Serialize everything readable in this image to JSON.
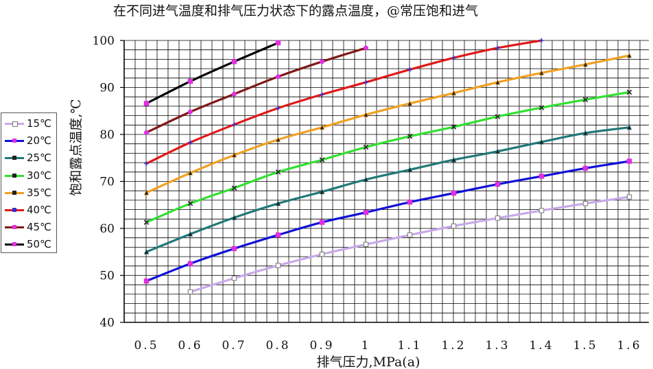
{
  "chart_data": {
    "type": "line",
    "title": "在不同进气温度和排气压力状态下的露点温度，@常压饱和进气",
    "xlabel": "排气压力,MPa(a)",
    "ylabel": "饱和露点温度,℃",
    "x": [
      0.5,
      0.6,
      0.7,
      0.8,
      0.9,
      1.0,
      1.1,
      1.2,
      1.3,
      1.4,
      1.5,
      1.6
    ],
    "x_tick_labels": [
      "0.5",
      "0.6",
      "0.7",
      "0.8",
      "0.9",
      "1",
      "1.1",
      "1.2",
      "1.3",
      "1.4",
      "1.5",
      "1.6"
    ],
    "ylim": [
      40,
      100
    ],
    "y_ticks": [
      40,
      50,
      60,
      70,
      80,
      90,
      100
    ],
    "grid": true,
    "legend_position": "left",
    "series": [
      {
        "name": "15℃",
        "color": "#c8a8e8",
        "marker": "square-open",
        "points": [
          [
            0.6,
            46.5
          ],
          [
            0.7,
            49.4
          ],
          [
            0.8,
            52.1
          ],
          [
            0.9,
            54.5
          ],
          [
            1.0,
            56.6
          ],
          [
            1.1,
            58.6
          ],
          [
            1.2,
            60.5
          ],
          [
            1.3,
            62.2
          ],
          [
            1.4,
            63.8
          ],
          [
            1.5,
            65.3
          ],
          [
            1.6,
            66.7
          ]
        ]
      },
      {
        "name": "20℃",
        "color": "#1010d8",
        "marker": "square",
        "points": [
          [
            0.5,
            48.8
          ],
          [
            0.6,
            52.5
          ],
          [
            0.7,
            55.7
          ],
          [
            0.8,
            58.6
          ],
          [
            0.9,
            61.3
          ],
          [
            1.0,
            63.4
          ],
          [
            1.1,
            65.6
          ],
          [
            1.2,
            67.5
          ],
          [
            1.3,
            69.4
          ],
          [
            1.4,
            71.1
          ],
          [
            1.5,
            72.8
          ],
          [
            1.6,
            74.3
          ]
        ]
      },
      {
        "name": "25℃",
        "color": "#207878",
        "marker": "triangle",
        "points": [
          [
            0.5,
            55.0
          ],
          [
            0.6,
            58.8
          ],
          [
            0.7,
            62.3
          ],
          [
            0.8,
            65.3
          ],
          [
            0.9,
            67.8
          ],
          [
            1.0,
            70.4
          ],
          [
            1.1,
            72.5
          ],
          [
            1.2,
            74.6
          ],
          [
            1.3,
            76.4
          ],
          [
            1.4,
            78.4
          ],
          [
            1.5,
            80.3
          ],
          [
            1.6,
            81.5
          ]
        ]
      },
      {
        "name": "30℃",
        "color": "#30e030",
        "marker": "x",
        "points": [
          [
            0.5,
            61.3
          ],
          [
            0.6,
            65.3
          ],
          [
            0.7,
            68.6
          ],
          [
            0.8,
            72.0
          ],
          [
            0.9,
            74.6
          ],
          [
            1.0,
            77.3
          ],
          [
            1.1,
            79.6
          ],
          [
            1.2,
            81.6
          ],
          [
            1.3,
            83.8
          ],
          [
            1.4,
            85.7
          ],
          [
            1.5,
            87.4
          ],
          [
            1.6,
            89.0
          ]
        ]
      },
      {
        "name": "35℃",
        "color": "#f0a020",
        "marker": "triangle",
        "points": [
          [
            0.5,
            67.6
          ],
          [
            0.6,
            71.8
          ],
          [
            0.7,
            75.6
          ],
          [
            0.8,
            78.9
          ],
          [
            0.9,
            81.5
          ],
          [
            1.0,
            84.2
          ],
          [
            1.1,
            86.6
          ],
          [
            1.2,
            88.8
          ],
          [
            1.3,
            91.1
          ],
          [
            1.4,
            93.1
          ],
          [
            1.5,
            94.9
          ],
          [
            1.6,
            96.8
          ]
        ]
      },
      {
        "name": "40℃",
        "color": "#e01818",
        "marker": "star",
        "points": [
          [
            0.5,
            73.8
          ],
          [
            0.6,
            78.3
          ],
          [
            0.7,
            82.1
          ],
          [
            0.8,
            85.6
          ],
          [
            0.9,
            88.5
          ],
          [
            1.0,
            91.1
          ],
          [
            1.1,
            93.8
          ],
          [
            1.2,
            96.3
          ],
          [
            1.3,
            98.4
          ],
          [
            1.4,
            100.0
          ]
        ]
      },
      {
        "name": "45℃",
        "color": "#801818",
        "marker": "circle",
        "points": [
          [
            0.5,
            80.4
          ],
          [
            0.6,
            84.8
          ],
          [
            0.7,
            88.6
          ],
          [
            0.8,
            92.3
          ],
          [
            0.9,
            95.5
          ],
          [
            1.0,
            98.4
          ]
        ]
      },
      {
        "name": "50℃",
        "color": "#000000",
        "marker": "square",
        "points": [
          [
            0.5,
            86.6
          ],
          [
            0.6,
            91.3
          ],
          [
            0.7,
            95.5
          ],
          [
            0.8,
            99.5
          ]
        ]
      }
    ]
  }
}
